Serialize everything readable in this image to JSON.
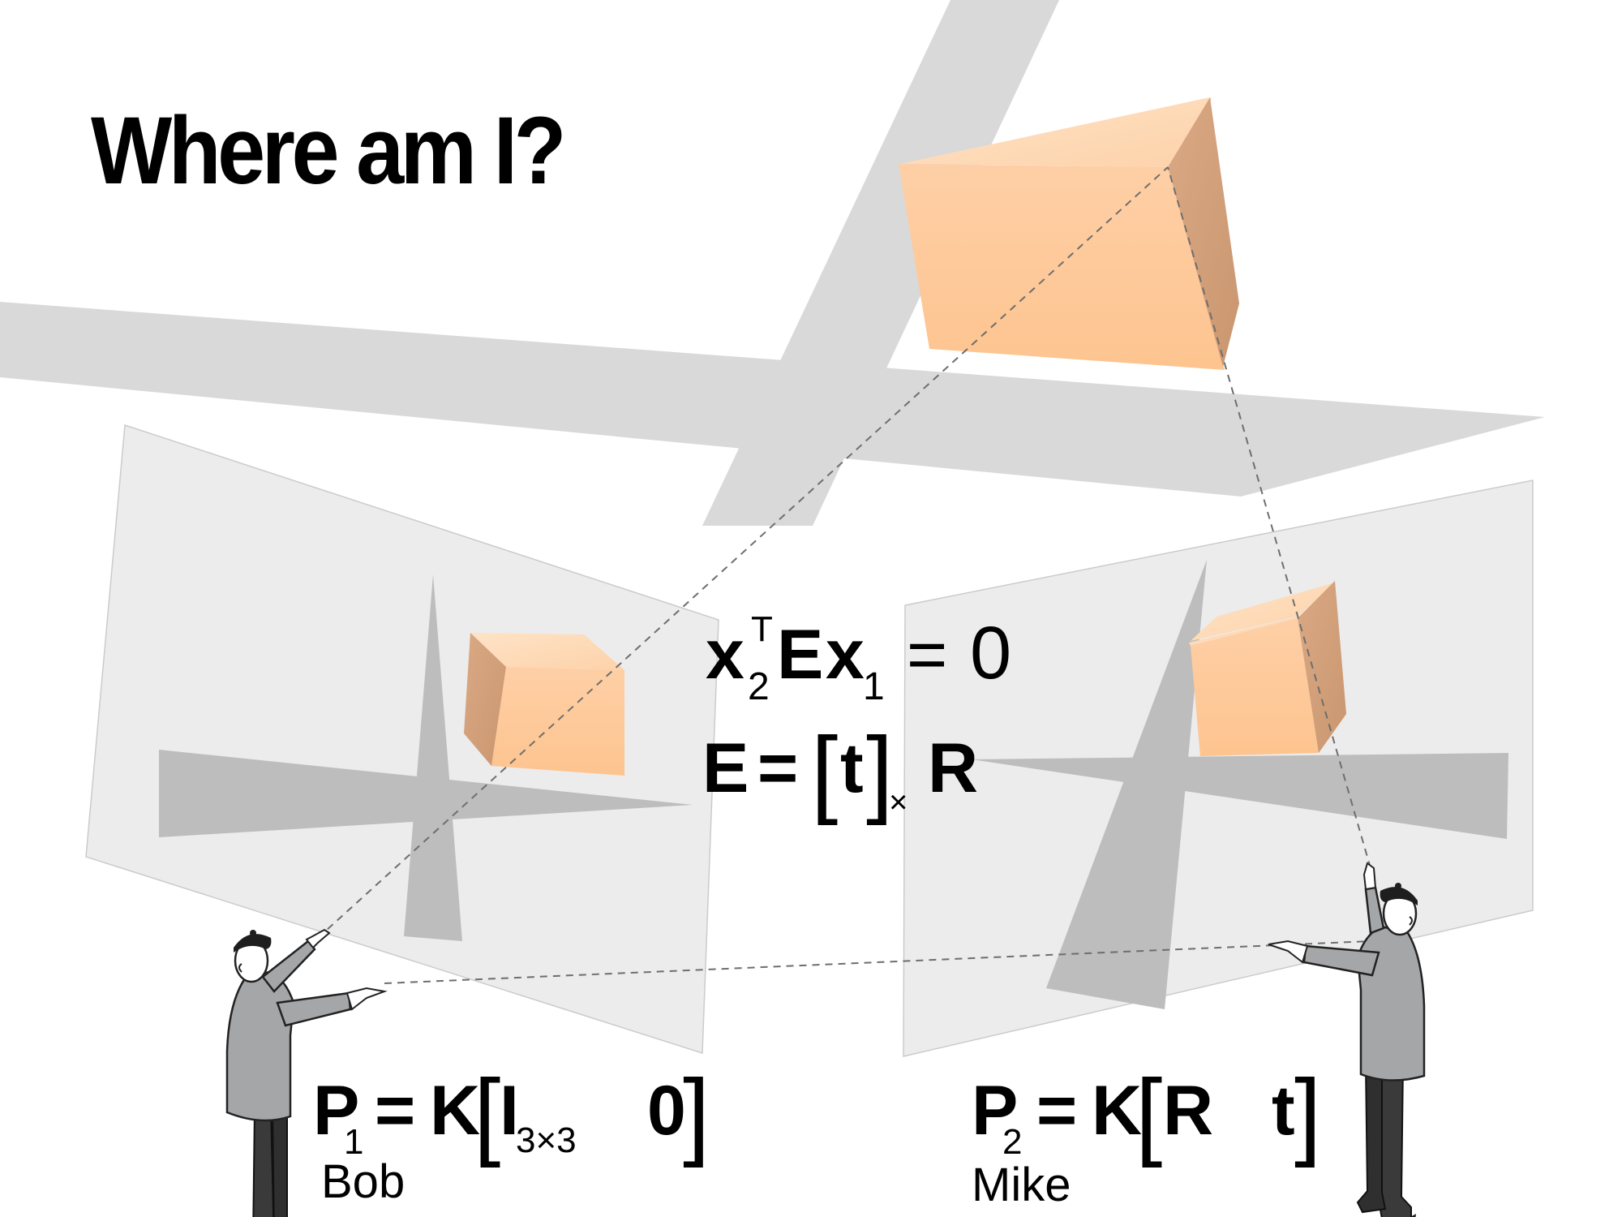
{
  "title": "Where am I?",
  "equations": {
    "epipolar": {
      "x": "x",
      "sub_2": "2",
      "sup_T": "T",
      "E": "E",
      "x2": "x",
      "sub_1": "1",
      "eq": "=",
      "rhs": "0"
    },
    "essential": {
      "E": "E",
      "eq": "=",
      "lb": "[",
      "t": "t",
      "rb": "]",
      "cross": "×",
      "R": "R"
    },
    "P1": {
      "P": "P",
      "sub": "1",
      "eq": "=",
      "K": "K",
      "lb": "[",
      "I": "I",
      "I_sub": "3×3",
      "zero": "0",
      "rb": "]"
    },
    "P2": {
      "P": "P",
      "sub": "2",
      "eq": "=",
      "K": "K",
      "lb": "[",
      "R": "R",
      "t": "t",
      "rb": "]"
    }
  },
  "labels": {
    "bob": "Bob",
    "mike": "Mike"
  },
  "colors": {
    "background": "#ffffff",
    "plane": "#ebebeb",
    "plane_stroke": "#c9c9c9",
    "road": "#d9d9d9",
    "shadow": "#b9b9b9",
    "box_front": "#fdc99b",
    "box_top": "#fedcb9",
    "box_side": "#d4a27a",
    "ray": "#6e6e6e",
    "person_sweater": "#a5a6a8",
    "person_pants": "#3a3a3a"
  }
}
